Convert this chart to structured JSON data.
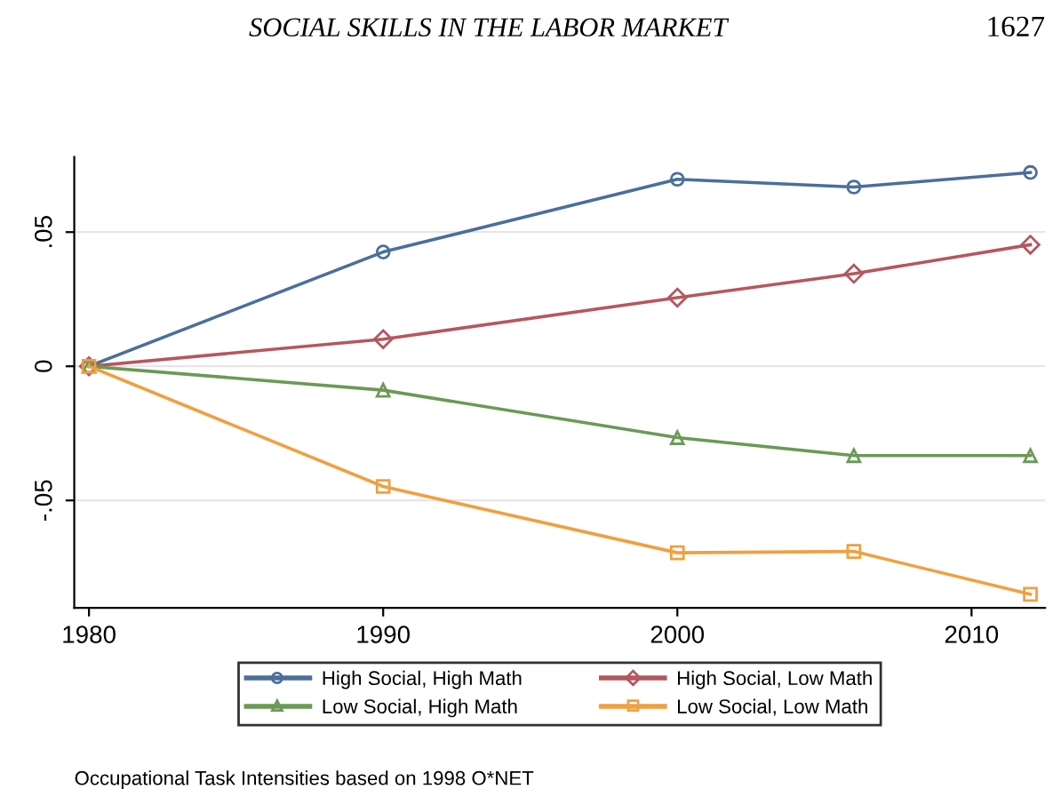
{
  "chart_data": {
    "type": "line",
    "title": "SOCIAL SKILLS IN THE LABOR MARKET",
    "annotations": [
      "1627",
      "Occupational Task Intensities based on 1998 O*NET"
    ],
    "x": [
      1980,
      1990,
      2000,
      2006,
      2012
    ],
    "series": [
      {
        "name": "High Social, High Math",
        "color": "#4a6f9a",
        "marker": "circle",
        "values": [
          0,
          0.0426,
          0.0697,
          0.0668,
          0.0722
        ]
      },
      {
        "name": "High Social, Low Math",
        "color": "#b5575e",
        "marker": "diamond",
        "values": [
          0,
          0.0101,
          0.0256,
          0.0345,
          0.0453
        ]
      },
      {
        "name": "Low Social, High Math",
        "color": "#6a9a55",
        "marker": "triangle",
        "values": [
          0,
          -0.0089,
          -0.0266,
          -0.0333,
          -0.0333
        ]
      },
      {
        "name": "Low Social, Low Math",
        "color": "#f0a040",
        "marker": "square",
        "values": [
          0,
          -0.0448,
          -0.0695,
          -0.069,
          -0.085
        ]
      }
    ],
    "xlim": [
      1979.5,
      2012.5
    ],
    "xticks": [
      1980,
      1990,
      2000,
      2010
    ],
    "ylim": [
      -0.09,
      0.078
    ],
    "yticks": [
      {
        "value": -0.05,
        "label": "-.05"
      },
      0,
      {
        "value": 0.05,
        "label": ".05"
      }
    ],
    "grid": "y",
    "legend": "bottom",
    "line_style": "solid"
  }
}
